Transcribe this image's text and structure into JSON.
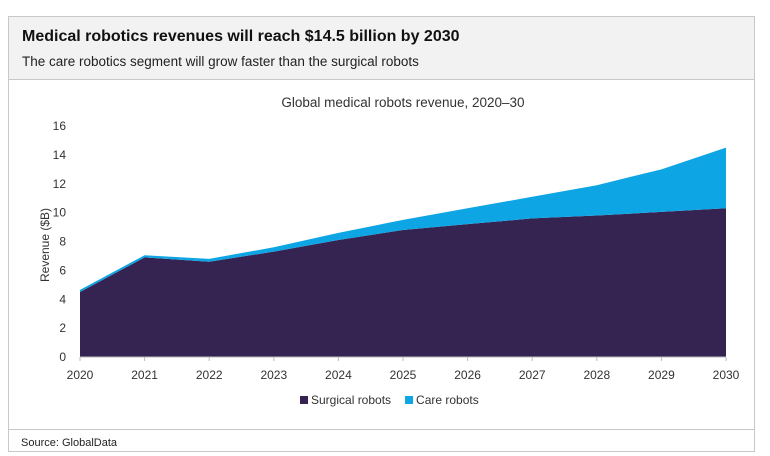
{
  "header": {
    "title": "Medical robotics revenues will reach $14.5 billion by 2030",
    "subtitle": "The care robotics segment will grow faster than the surgical robots"
  },
  "source": "Source: GlobalData",
  "chart_data": {
    "type": "area",
    "stacked": true,
    "title": "Global medical robots revenue, 2020–30",
    "xlabel": "",
    "ylabel": "Revenue ($B)",
    "x": [
      "2020",
      "2021",
      "2022",
      "2023",
      "2024",
      "2025",
      "2026",
      "2027",
      "2028",
      "2029",
      "2030"
    ],
    "ylim": [
      0,
      16
    ],
    "yticks": [
      0,
      2,
      4,
      6,
      8,
      10,
      12,
      14,
      16
    ],
    "grid": false,
    "legend": "bottom",
    "series": [
      {
        "name": "Surgical robots",
        "color": "#352351",
        "values": [
          4.5,
          6.9,
          6.6,
          7.3,
          8.1,
          8.8,
          9.2,
          9.6,
          9.8,
          10.05,
          10.3
        ]
      },
      {
        "name": "Care robots",
        "color": "#0ea5e4",
        "values": [
          0.15,
          0.15,
          0.2,
          0.3,
          0.5,
          0.7,
          1.1,
          1.5,
          2.1,
          2.95,
          4.2
        ]
      }
    ]
  }
}
